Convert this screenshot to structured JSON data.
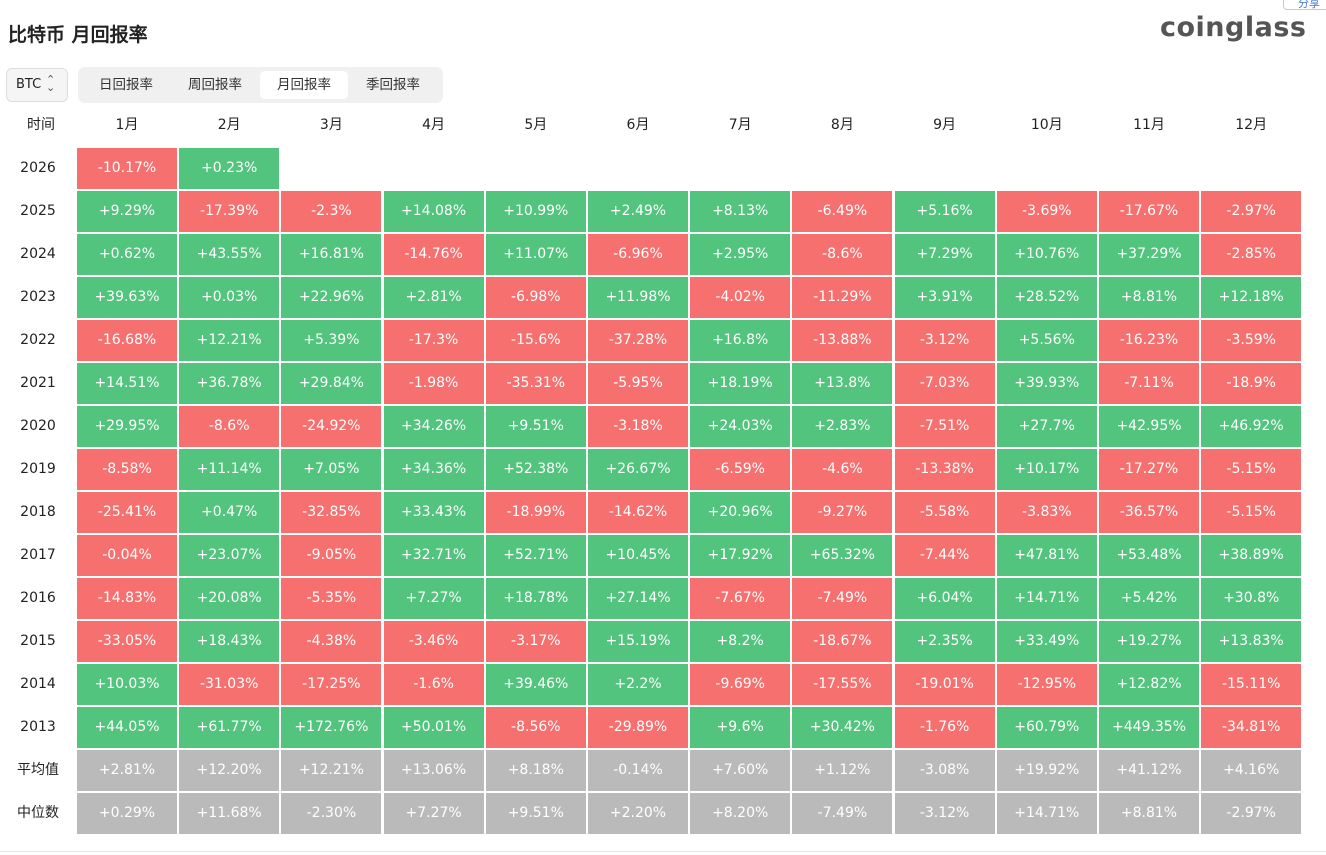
{
  "header": {
    "title": "比特币 月回报率",
    "logo": "coinglass",
    "share": "分享"
  },
  "controls": {
    "asset": "BTC",
    "tabs": [
      "日回报率",
      "周回报率",
      "月回报率",
      "季回报率"
    ],
    "active_tab": 2
  },
  "colors": {
    "up": "#52c47e",
    "down": "#f5706f",
    "summary": "#bababa"
  },
  "table": {
    "columns": [
      "时间",
      "1月",
      "2月",
      "3月",
      "4月",
      "5月",
      "6月",
      "7月",
      "8月",
      "9月",
      "10月",
      "11月",
      "12月"
    ],
    "rows": [
      {
        "label": "2026",
        "cells": [
          "-10.17%",
          "+0.23%"
        ]
      },
      {
        "label": "2025",
        "cells": [
          "+9.29%",
          "-17.39%",
          "-2.3%",
          "+14.08%",
          "+10.99%",
          "+2.49%",
          "+8.13%",
          "-6.49%",
          "+5.16%",
          "-3.69%",
          "-17.67%",
          "-2.97%"
        ]
      },
      {
        "label": "2024",
        "cells": [
          "+0.62%",
          "+43.55%",
          "+16.81%",
          "-14.76%",
          "+11.07%",
          "-6.96%",
          "+2.95%",
          "-8.6%",
          "+7.29%",
          "+10.76%",
          "+37.29%",
          "-2.85%"
        ]
      },
      {
        "label": "2023",
        "cells": [
          "+39.63%",
          "+0.03%",
          "+22.96%",
          "+2.81%",
          "-6.98%",
          "+11.98%",
          "-4.02%",
          "-11.29%",
          "+3.91%",
          "+28.52%",
          "+8.81%",
          "+12.18%"
        ]
      },
      {
        "label": "2022",
        "cells": [
          "-16.68%",
          "+12.21%",
          "+5.39%",
          "-17.3%",
          "-15.6%",
          "-37.28%",
          "+16.8%",
          "-13.88%",
          "-3.12%",
          "+5.56%",
          "-16.23%",
          "-3.59%"
        ]
      },
      {
        "label": "2021",
        "cells": [
          "+14.51%",
          "+36.78%",
          "+29.84%",
          "-1.98%",
          "-35.31%",
          "-5.95%",
          "+18.19%",
          "+13.8%",
          "-7.03%",
          "+39.93%",
          "-7.11%",
          "-18.9%"
        ]
      },
      {
        "label": "2020",
        "cells": [
          "+29.95%",
          "-8.6%",
          "-24.92%",
          "+34.26%",
          "+9.51%",
          "-3.18%",
          "+24.03%",
          "+2.83%",
          "-7.51%",
          "+27.7%",
          "+42.95%",
          "+46.92%"
        ]
      },
      {
        "label": "2019",
        "cells": [
          "-8.58%",
          "+11.14%",
          "+7.05%",
          "+34.36%",
          "+52.38%",
          "+26.67%",
          "-6.59%",
          "-4.6%",
          "-13.38%",
          "+10.17%",
          "-17.27%",
          "-5.15%"
        ]
      },
      {
        "label": "2018",
        "cells": [
          "-25.41%",
          "+0.47%",
          "-32.85%",
          "+33.43%",
          "-18.99%",
          "-14.62%",
          "+20.96%",
          "-9.27%",
          "-5.58%",
          "-3.83%",
          "-36.57%",
          "-5.15%"
        ]
      },
      {
        "label": "2017",
        "cells": [
          "-0.04%",
          "+23.07%",
          "-9.05%",
          "+32.71%",
          "+52.71%",
          "+10.45%",
          "+17.92%",
          "+65.32%",
          "-7.44%",
          "+47.81%",
          "+53.48%",
          "+38.89%"
        ]
      },
      {
        "label": "2016",
        "cells": [
          "-14.83%",
          "+20.08%",
          "-5.35%",
          "+7.27%",
          "+18.78%",
          "+27.14%",
          "-7.67%",
          "-7.49%",
          "+6.04%",
          "+14.71%",
          "+5.42%",
          "+30.8%"
        ]
      },
      {
        "label": "2015",
        "cells": [
          "-33.05%",
          "+18.43%",
          "-4.38%",
          "-3.46%",
          "-3.17%",
          "+15.19%",
          "+8.2%",
          "-18.67%",
          "+2.35%",
          "+33.49%",
          "+19.27%",
          "+13.83%"
        ]
      },
      {
        "label": "2014",
        "cells": [
          "+10.03%",
          "-31.03%",
          "-17.25%",
          "-1.6%",
          "+39.46%",
          "+2.2%",
          "-9.69%",
          "-17.55%",
          "-19.01%",
          "-12.95%",
          "+12.82%",
          "-15.11%"
        ]
      },
      {
        "label": "2013",
        "cells": [
          "+44.05%",
          "+61.77%",
          "+172.76%",
          "+50.01%",
          "-8.56%",
          "-29.89%",
          "+9.6%",
          "+30.42%",
          "-1.76%",
          "+60.79%",
          "+449.35%",
          "-34.81%"
        ]
      }
    ],
    "summary_rows": [
      {
        "label": "平均值",
        "cells": [
          "+2.81%",
          "+12.20%",
          "+12.21%",
          "+13.06%",
          "+8.18%",
          "-0.14%",
          "+7.60%",
          "+1.12%",
          "-3.08%",
          "+19.92%",
          "+41.12%",
          "+4.16%"
        ]
      },
      {
        "label": "中位数",
        "cells": [
          "+0.29%",
          "+11.68%",
          "-2.30%",
          "+7.27%",
          "+9.51%",
          "+2.20%",
          "+8.20%",
          "-7.49%",
          "-3.12%",
          "+14.71%",
          "+8.81%",
          "-2.97%"
        ]
      }
    ]
  }
}
